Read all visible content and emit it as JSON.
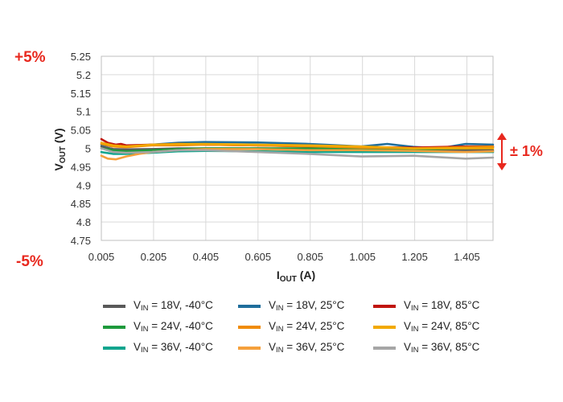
{
  "annotations": {
    "top_left": "+5%",
    "bottom_left": "-5%",
    "right": "± 1%",
    "color": "#e8281e"
  },
  "chart_data": {
    "type": "line",
    "xlabel": {
      "main": "I",
      "sub": "OUT",
      "unit": " (A)"
    },
    "ylabel": {
      "main": "V",
      "sub": "OUT",
      "unit": " (V)"
    },
    "xlim": [
      0.005,
      1.505
    ],
    "ylim": [
      4.75,
      5.25
    ],
    "xticks": [
      0.005,
      0.205,
      0.405,
      0.605,
      0.805,
      1.005,
      1.205,
      1.405
    ],
    "yticks": [
      4.75,
      4.8,
      4.85,
      4.9,
      4.95,
      5.0,
      5.05,
      5.1,
      5.15,
      5.2,
      5.25
    ],
    "xtick_labels": [
      "0.005",
      "0.205",
      "0.405",
      "0.605",
      "0.805",
      "1.005",
      "1.205",
      "1.405"
    ],
    "ytick_labels": [
      "4.75",
      "4.8",
      "4.85",
      "4.9",
      "4.95",
      "5",
      "5.05",
      "5.1",
      "5.15",
      "5.2",
      "5.25"
    ],
    "grid": true,
    "legend_position": "bottom",
    "series": [
      {
        "label_main": "V",
        "label_sub": "IN",
        "label_rest": " = 18V, -40°C",
        "color": "#595959",
        "x": [
          0.005,
          0.05,
          0.1,
          0.2,
          0.3,
          0.4,
          0.6,
          0.8,
          1.0,
          1.2,
          1.4,
          1.505
        ],
        "y": [
          5.005,
          4.998,
          4.997,
          4.998,
          5.0,
          5.0,
          5.0,
          4.998,
          4.997,
          4.996,
          4.995,
          4.995
        ]
      },
      {
        "label_main": "V",
        "label_sub": "IN",
        "label_rest": " = 18V, 25°C",
        "color": "#1f6e9c",
        "x": [
          0.005,
          0.05,
          0.1,
          0.2,
          0.3,
          0.4,
          0.6,
          0.8,
          1.0,
          1.1,
          1.2,
          1.3,
          1.4,
          1.505
        ],
        "y": [
          5.01,
          5.005,
          5.005,
          5.01,
          5.015,
          5.017,
          5.016,
          5.012,
          5.005,
          5.012,
          5.004,
          5.0,
          5.012,
          5.01
        ]
      },
      {
        "label_main": "V",
        "label_sub": "IN",
        "label_rest": " = 18V, 85°C",
        "color": "#c0150e",
        "x": [
          0.005,
          0.03,
          0.06,
          0.08,
          0.1,
          0.2,
          0.3,
          0.4,
          0.6,
          0.8,
          1.0,
          1.2,
          1.4,
          1.505
        ],
        "y": [
          5.025,
          5.015,
          5.01,
          5.012,
          5.008,
          5.01,
          5.012,
          5.01,
          5.008,
          5.005,
          5.003,
          5.002,
          5.005,
          5.005
        ]
      },
      {
        "label_main": "V",
        "label_sub": "IN",
        "label_rest": " = 24V, -40°C",
        "color": "#1e9a3c",
        "x": [
          0.005,
          0.05,
          0.1,
          0.2,
          0.3,
          0.4,
          0.6,
          0.8,
          1.0,
          1.2,
          1.4,
          1.505
        ],
        "y": [
          5.0,
          4.995,
          4.992,
          4.995,
          4.998,
          5.0,
          5.0,
          5.0,
          4.998,
          4.997,
          5.0,
          5.002
        ]
      },
      {
        "label_main": "V",
        "label_sub": "IN",
        "label_rest": " = 24V, 25°C",
        "color": "#f08c0a",
        "x": [
          0.005,
          0.05,
          0.1,
          0.2,
          0.3,
          0.4,
          0.6,
          0.8,
          1.0,
          1.2,
          1.4,
          1.505
        ],
        "y": [
          5.012,
          5.005,
          5.003,
          5.008,
          5.008,
          5.01,
          5.008,
          5.006,
          5.002,
          5.0,
          5.003,
          5.005
        ]
      },
      {
        "label_main": "V",
        "label_sub": "IN",
        "label_rest": " = 24V, 85°C",
        "color": "#f2a900",
        "x": [
          0.005,
          0.05,
          0.1,
          0.2,
          0.3,
          0.4,
          0.6,
          0.8,
          1.0,
          1.2,
          1.4,
          1.505
        ],
        "y": [
          5.015,
          5.008,
          5.005,
          5.01,
          5.012,
          5.012,
          5.01,
          5.008,
          5.005,
          5.0,
          5.0,
          5.0
        ]
      },
      {
        "label_main": "V",
        "label_sub": "IN",
        "label_rest": " = 36V, -40°C",
        "color": "#12a58e",
        "x": [
          0.005,
          0.05,
          0.1,
          0.2,
          0.3,
          0.4,
          0.6,
          0.8,
          1.0,
          1.2,
          1.4,
          1.505
        ],
        "y": [
          4.99,
          4.985,
          4.985,
          4.988,
          4.992,
          4.993,
          4.992,
          4.99,
          4.99,
          4.99,
          4.99,
          4.99
        ]
      },
      {
        "label_main": "V",
        "label_sub": "IN",
        "label_rest": " = 36V, 25°C",
        "color": "#f5a03c",
        "x": [
          0.005,
          0.03,
          0.06,
          0.1,
          0.15,
          0.2,
          0.3,
          0.4,
          0.6,
          0.8,
          1.0,
          1.2,
          1.4,
          1.505
        ],
        "y": [
          4.98,
          4.972,
          4.97,
          4.978,
          4.985,
          4.99,
          4.995,
          4.998,
          4.998,
          4.995,
          4.995,
          4.993,
          4.99,
          4.992
        ]
      },
      {
        "label_main": "V",
        "label_sub": "IN",
        "label_rest": " = 36V, 85°C",
        "color": "#a6a6a6",
        "x": [
          0.005,
          0.05,
          0.1,
          0.2,
          0.3,
          0.4,
          0.6,
          0.8,
          1.0,
          1.2,
          1.4,
          1.505
        ],
        "y": [
          5.0,
          4.99,
          4.988,
          4.99,
          4.995,
          4.995,
          4.99,
          4.985,
          4.978,
          4.98,
          4.972,
          4.975
        ]
      }
    ]
  }
}
